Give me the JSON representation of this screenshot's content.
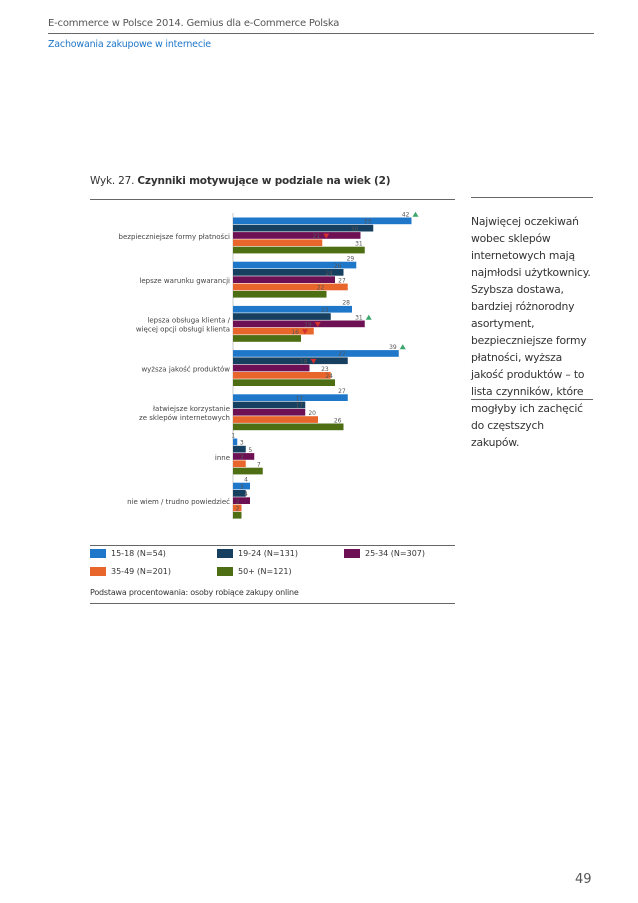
{
  "header": {
    "publication": "E-commerce w Polsce 2014. Gemius dla e-Commerce Polska",
    "section": "Zachowania zakupowe w internecie"
  },
  "chart_title": {
    "prefix": "Wyk. 27.",
    "text": "Czynniki motywujące w podziale na wiek (2)"
  },
  "side_note": "Najwięcej oczekiwań wobec sklepów internetowych mają najmłodsi użytkownicy. Szybsza dostawa, bardziej różnorodny asortyment, bezpieczniejsze formy płatności, wyższa jakość produktów – to lista czynników, które mogłyby ich zachęcić do częstszych zakupów.",
  "legend": [
    {
      "label": "15-18 (N=54)",
      "color": "#1f77c9"
    },
    {
      "label": "19-24 (N=131)",
      "color": "#173f5f"
    },
    {
      "label": "25-34 (N=307)",
      "color": "#6e1054"
    },
    {
      "label": "35-49 (N=201)",
      "color": "#e8662b"
    },
    {
      "label": "50+ (N=121)",
      "color": "#4e6e14"
    }
  ],
  "base_note": "Podstawa procentowania: osoby robiące zakupy online",
  "page_number": "49",
  "chart_data": {
    "type": "bar",
    "orientation": "horizontal",
    "xlim": [
      0,
      45
    ],
    "categories": [
      "bezpieczniejsze formy płatności",
      "lepsze warunku gwarancji",
      "lepsza obsługa klienta / więcej opcji obsługi klienta",
      "wyższa jakość produktów",
      "łatwiejsze korzystanie ze sklepów internetowych",
      "inne",
      "nie wiem / trudno powiedzieć"
    ],
    "category_lines": [
      [
        "bezpieczniejsze formy płatności"
      ],
      [
        "lepsze warunku gwarancji"
      ],
      [
        "lepsza obsługa klienta /",
        "więcej opcji obsługi klienta"
      ],
      [
        "wyższa jakość produktów"
      ],
      [
        "łatwiejsze korzystanie",
        "ze sklepów internetowych"
      ],
      [
        "inne"
      ],
      [
        "nie wiem / trudno powiedzieć"
      ]
    ],
    "series": [
      {
        "name": "15-18 (N=54)",
        "color": "#1f77c9",
        "values": [
          42,
          29,
          28,
          39,
          27,
          1,
          4
        ]
      },
      {
        "name": "19-24 (N=131)",
        "color": "#173f5f",
        "values": [
          33,
          26,
          23,
          27,
          17,
          3,
          3
        ]
      },
      {
        "name": "25-34 (N=307)",
        "color": "#6e1054",
        "values": [
          30,
          24,
          31,
          18,
          17,
          5,
          4
        ]
      },
      {
        "name": "35-49 (N=201)",
        "color": "#e8662b",
        "values": [
          21,
          27,
          19,
          23,
          20,
          3,
          2
        ]
      },
      {
        "name": "50+ (N=121)",
        "color": "#4e6e14",
        "values": [
          31,
          22,
          16,
          24,
          26,
          7,
          2
        ]
      }
    ],
    "markers": [
      {
        "category": 0,
        "series": 0,
        "direction": "up"
      },
      {
        "category": 0,
        "series": 3,
        "direction": "down"
      },
      {
        "category": 2,
        "series": 2,
        "direction": "up"
      },
      {
        "category": 2,
        "series": 3,
        "direction": "down"
      },
      {
        "category": 2,
        "series": 4,
        "direction": "down"
      },
      {
        "category": 3,
        "series": 0,
        "direction": "up"
      },
      {
        "category": 3,
        "series": 2,
        "direction": "down"
      }
    ],
    "marker_colors": {
      "up": "#3aa66a",
      "down": "#d32f2f"
    }
  }
}
